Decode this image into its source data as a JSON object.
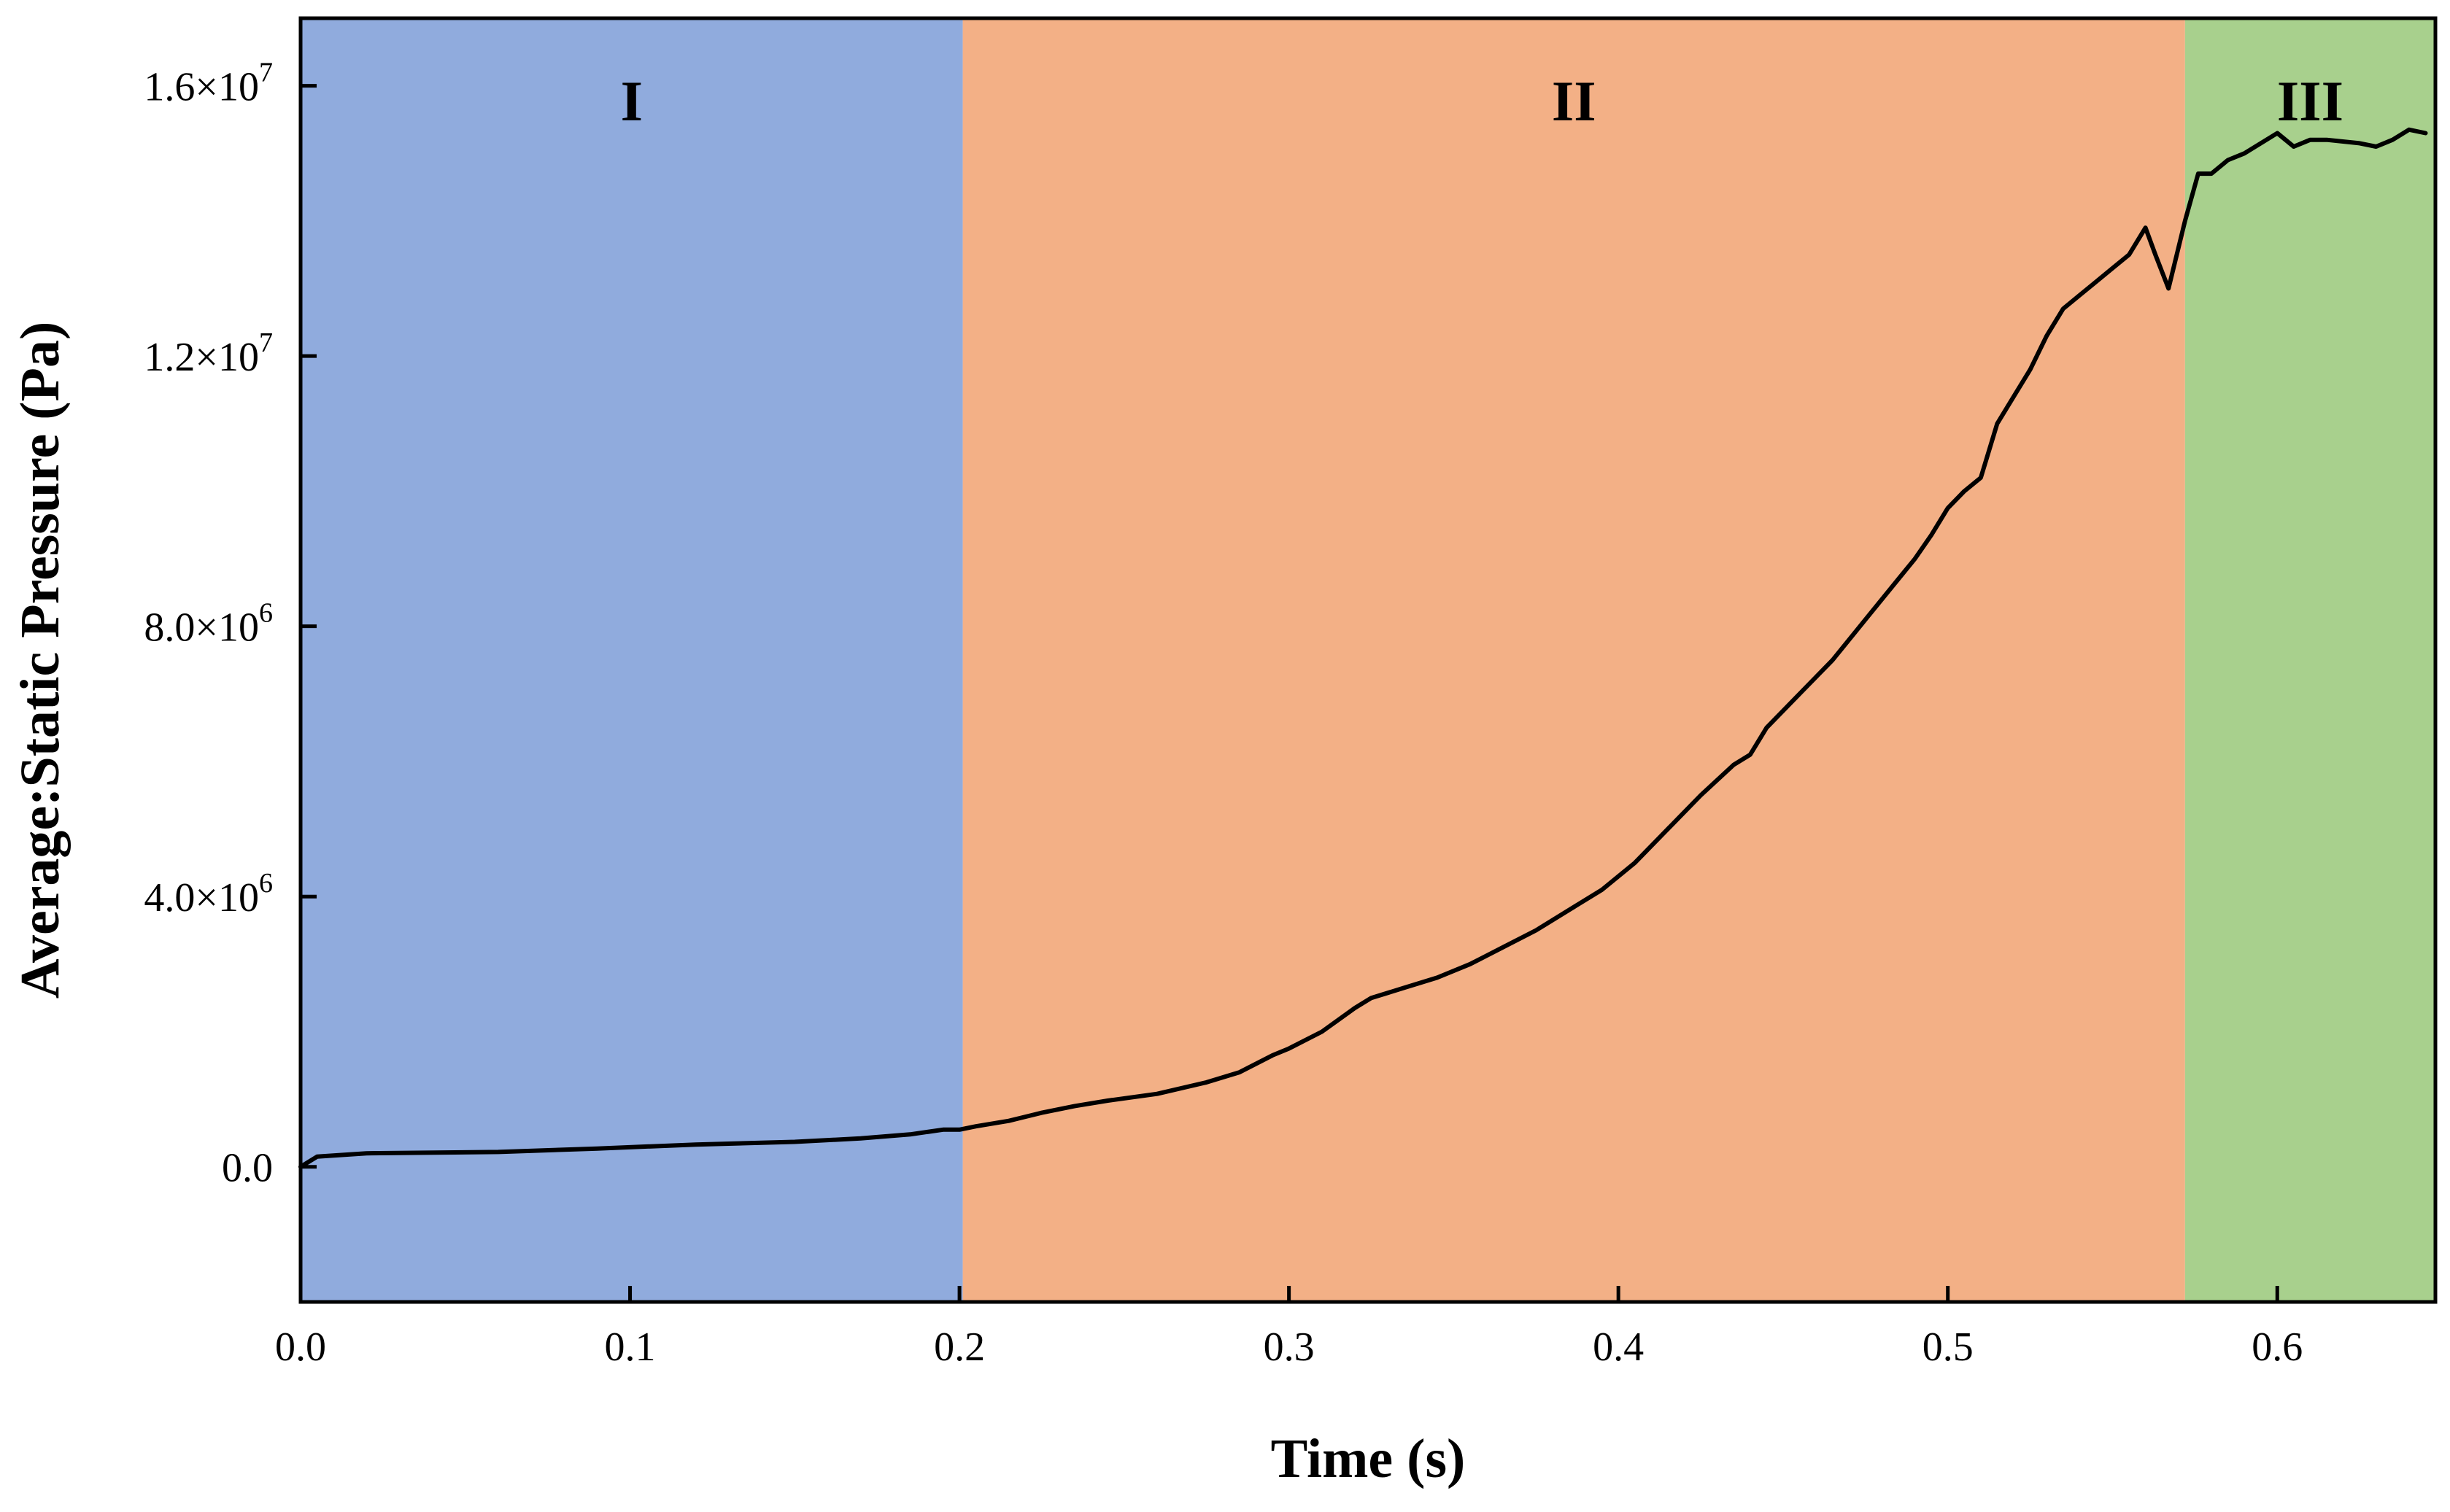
{
  "chart_data": {
    "type": "line",
    "title": "",
    "xlabel": "Time (s)",
    "ylabel": "Average:Static Pressure (Pa)",
    "xlim": [
      0.0,
      0.648
    ],
    "ylim": [
      -2000000,
      17000000
    ],
    "grid": false,
    "x_ticks": [
      {
        "value": 0.0,
        "label": "0.0"
      },
      {
        "value": 0.1,
        "label": "0.1"
      },
      {
        "value": 0.2,
        "label": "0.2"
      },
      {
        "value": 0.3,
        "label": "0.3"
      },
      {
        "value": 0.4,
        "label": "0.4"
      },
      {
        "value": 0.5,
        "label": "0.5"
      },
      {
        "value": 0.6,
        "label": "0.6"
      }
    ],
    "y_ticks": [
      {
        "value": 0,
        "label": "0.0",
        "exp": ""
      },
      {
        "value": 4000000,
        "label": "4.0×10",
        "exp": "6"
      },
      {
        "value": 8000000,
        "label": "8.0×10",
        "exp": "6"
      },
      {
        "value": 12000000,
        "label": "1.2×10",
        "exp": "7"
      },
      {
        "value": 16000000,
        "label": "1.6×10",
        "exp": "7"
      }
    ],
    "regions": [
      {
        "label": "I",
        "x_start": 0.0,
        "x_end": 0.201,
        "color": "#90abdd"
      },
      {
        "label": "II",
        "x_start": 0.201,
        "x_end": 0.572,
        "color": "#f3b086"
      },
      {
        "label": "III",
        "x_start": 0.572,
        "x_end": 0.648,
        "color": "#a8d08d"
      }
    ],
    "series": [
      {
        "name": "Average:Static Pressure",
        "color": "#000000",
        "x": [
          0.0,
          0.005,
          0.02,
          0.06,
          0.09,
          0.12,
          0.15,
          0.17,
          0.185,
          0.195,
          0.2,
          0.205,
          0.215,
          0.225,
          0.235,
          0.245,
          0.26,
          0.275,
          0.285,
          0.295,
          0.3,
          0.31,
          0.32,
          0.325,
          0.335,
          0.345,
          0.355,
          0.365,
          0.375,
          0.385,
          0.395,
          0.405,
          0.415,
          0.425,
          0.435,
          0.44,
          0.445,
          0.455,
          0.465,
          0.475,
          0.485,
          0.49,
          0.495,
          0.5,
          0.505,
          0.51,
          0.515,
          0.52,
          0.525,
          0.53,
          0.535,
          0.54,
          0.545,
          0.55,
          0.555,
          0.56,
          0.563,
          0.567,
          0.572,
          0.576,
          0.58,
          0.585,
          0.59,
          0.6,
          0.605,
          0.61,
          0.615,
          0.625,
          0.63,
          0.635,
          0.64,
          0.645
        ],
        "y": [
          0,
          150000,
          200000,
          220000,
          270000,
          330000,
          370000,
          420000,
          480000,
          550000,
          550000,
          600000,
          680000,
          800000,
          900000,
          980000,
          1080000,
          1250000,
          1400000,
          1650000,
          1750000,
          2000000,
          2350000,
          2500000,
          2650000,
          2800000,
          3000000,
          3250000,
          3500000,
          3800000,
          4100000,
          4500000,
          5000000,
          5500000,
          5950000,
          6100000,
          6500000,
          7000000,
          7500000,
          8100000,
          8700000,
          9000000,
          9350000,
          9750000,
          10000000,
          10200000,
          11000000,
          11400000,
          11800000,
          12300000,
          12700000,
          12900000,
          13100000,
          13300000,
          13500000,
          13900000,
          13500000,
          13000000,
          14000000,
          14700000,
          14700000,
          14900000,
          15000000,
          15300000,
          15100000,
          15200000,
          15200000,
          15150000,
          15100000,
          15200000,
          15350000,
          15300000
        ]
      }
    ]
  }
}
